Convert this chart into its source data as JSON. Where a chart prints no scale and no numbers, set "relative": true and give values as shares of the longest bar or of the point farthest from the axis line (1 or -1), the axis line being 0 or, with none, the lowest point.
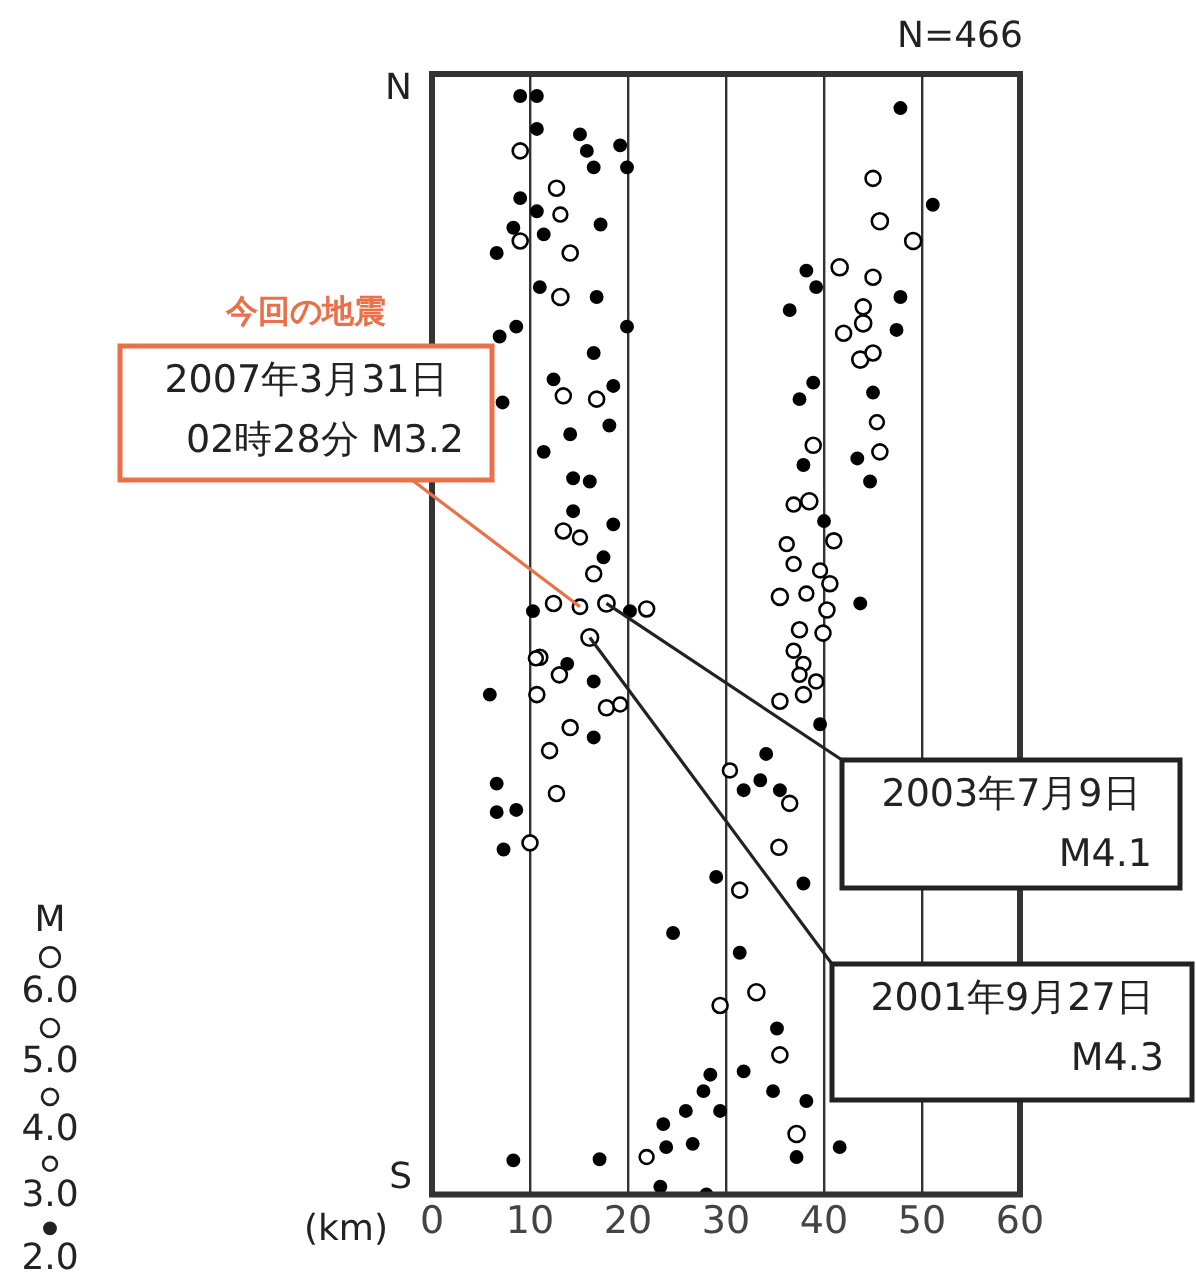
{
  "chart_data": {
    "type": "bubble",
    "relative": true,
    "xlabel": "(km)",
    "legend_title": "M",
    "size_legend": [
      {
        "value": 2,
        "label": "2.0"
      },
      {
        "value": 3,
        "label": "3.0"
      },
      {
        "value": 4,
        "label": "4.0"
      },
      {
        "value": 5,
        "label": "5.0"
      },
      {
        "value": 6,
        "label": "6.0"
      }
    ],
    "xlim": [
      0,
      60
    ],
    "xticks": [
      0,
      10,
      20,
      30,
      40,
      50,
      60
    ],
    "grid": "x",
    "marker": "circle",
    "legend": false,
    "annotations": [
      "N",
      "S",
      "N=466",
      {
        "text": "今回の地震\n2007年3月31日\n02時28分 M3.2",
        "x": 15.1,
        "y": 0.535
      },
      {
        "text": "2003年7月9日\nM4.1",
        "x": 17.8,
        "y": 0.538
      },
      {
        "text": "2001年9月27日\nM4.3",
        "x": 16.1,
        "y": 0.507
      }
    ],
    "series": [
      {
        "color": "#000000",
        "x": [
          9.0,
          10.7,
          10.7,
          15.1,
          9.0,
          15.8,
          19.2,
          16.5,
          19.9,
          12.7,
          9.0,
          10.7,
          13.1,
          8.3,
          9.0,
          6.6,
          11.4,
          14.1,
          17.2,
          11.0,
          13.1,
          16.8,
          6.9,
          8.6,
          19.9,
          16.5,
          12.4,
          13.4,
          16.8,
          7.2,
          18.5,
          14.1,
          18.1,
          11.4,
          14.4,
          16.1,
          14.4,
          13.4,
          15.1,
          18.5,
          17.5,
          16.5,
          12.4,
          15.1,
          17.8,
          21.9,
          20.2,
          10.3,
          16.1,
          11.0,
          13.8,
          47.8,
          45.0,
          51.1,
          45.7,
          49.1,
          41.6,
          38.2,
          45.0,
          39.2,
          47.8,
          44.0,
          36.5,
          44.0,
          42.0,
          47.4,
          43.7,
          45.0,
          38.9,
          37.5,
          45.0,
          45.4,
          45.7,
          38.9,
          37.9,
          43.4,
          44.7,
          38.5,
          36.9,
          40.0,
          41.0,
          36.2,
          36.9,
          39.6,
          40.6,
          35.5,
          38.2,
          43.7,
          40.3,
          37.5,
          39.9,
          36.9,
          37.9,
          10.6,
          13.0,
          5.9,
          10.7,
          16.5,
          17.8,
          19.2,
          14.1,
          12.0,
          16.5,
          6.6,
          12.7,
          6.6,
          8.6,
          10.0,
          7.3,
          35.5,
          37.9,
          39.2,
          37.5,
          39.6,
          30.4,
          34.1,
          31.8,
          33.5,
          35.5,
          36.5,
          35.4,
          29.0,
          31.4,
          37.9,
          24.6,
          31.4,
          33.1,
          29.4,
          35.2,
          35.5,
          31.8,
          28.4,
          34.8,
          27.7,
          29.4,
          25.9,
          23.6,
          26.6,
          23.9,
          37.2,
          38.2,
          41.6,
          37.2,
          21.9,
          17.1,
          8.3,
          23.3,
          28.0
        ],
        "values": [
          1.0,
          1.0,
          0.97,
          0.965,
          0.95,
          0.95,
          0.955,
          0.935,
          0.935,
          0.916,
          0.907,
          0.895,
          0.892,
          0.88,
          0.868,
          0.857,
          0.874,
          0.857,
          0.883,
          0.826,
          0.817,
          0.817,
          0.781,
          0.79,
          0.79,
          0.766,
          0.742,
          0.727,
          0.724,
          0.721,
          0.736,
          0.692,
          0.7,
          0.676,
          0.652,
          0.649,
          0.622,
          0.604,
          0.598,
          0.61,
          0.58,
          0.565,
          0.538,
          0.535,
          0.538,
          0.533,
          0.531,
          0.531,
          0.507,
          0.489,
          0.483,
          0.989,
          0.925,
          0.901,
          0.886,
          0.868,
          0.844,
          0.841,
          0.835,
          0.826,
          0.817,
          0.808,
          0.805,
          0.793,
          0.784,
          0.787,
          0.76,
          0.766,
          0.739,
          0.724,
          0.73,
          0.703,
          0.676,
          0.682,
          0.664,
          0.67,
          0.649,
          0.631,
          0.628,
          0.613,
          0.595,
          0.592,
          0.574,
          0.568,
          0.556,
          0.544,
          0.547,
          0.538,
          0.532,
          0.514,
          0.511,
          0.495,
          0.483,
          0.488,
          0.473,
          0.455,
          0.455,
          0.467,
          0.443,
          0.446,
          0.425,
          0.404,
          0.416,
          0.374,
          0.365,
          0.348,
          0.35,
          0.32,
          0.314,
          0.449,
          0.455,
          0.467,
          0.473,
          0.428,
          0.386,
          0.401,
          0.368,
          0.377,
          0.368,
          0.356,
          0.316,
          0.289,
          0.277,
          0.283,
          0.238,
          0.22,
          0.184,
          0.172,
          0.151,
          0.127,
          0.112,
          0.109,
          0.094,
          0.094,
          0.076,
          0.076,
          0.064,
          0.046,
          0.043,
          0.055,
          0.085,
          0.043,
          0.034,
          0.034,
          0.032,
          0.031,
          0.007,
          0.0
        ],
        "sizes": [
          2,
          2,
          2,
          2,
          3.5,
          2,
          2,
          2,
          2,
          3.5,
          2,
          2,
          3,
          2,
          3.5,
          2,
          2,
          3.5,
          2,
          2,
          4,
          2,
          2,
          2,
          2,
          2,
          2,
          3.5,
          3.5,
          2,
          2,
          2,
          2,
          2,
          2,
          2,
          2,
          3.5,
          3,
          2,
          2,
          3.5,
          3.5,
          3.2,
          4.1,
          3.5,
          2,
          2,
          4.3,
          3.5,
          2,
          2,
          3.5,
          2,
          4,
          4,
          4,
          2,
          3.5,
          2,
          2,
          3.5,
          2,
          4,
          3.5,
          2,
          4,
          3.5,
          2,
          2,
          2,
          3,
          3.5,
          3.5,
          2,
          2,
          2,
          4,
          3,
          2,
          3.5,
          3,
          3,
          3,
          3.5,
          4,
          3,
          2,
          3.5,
          3.5,
          3.5,
          3,
          3,
          3,
          3.5,
          2,
          3.5,
          2,
          3.5,
          3,
          3.5,
          3.5,
          2,
          2,
          3.5,
          2,
          2,
          3.5,
          2,
          3.5,
          3.5,
          3,
          3,
          2,
          3,
          2,
          2,
          2,
          2,
          3.5,
          3.5,
          2,
          3.5,
          2,
          2,
          2,
          4,
          3.5,
          2,
          3.5,
          2,
          2,
          2,
          2,
          2,
          2,
          2,
          2,
          2,
          4,
          2,
          2,
          2,
          3,
          2,
          2,
          2,
          2
        ]
      }
    ]
  }
}
